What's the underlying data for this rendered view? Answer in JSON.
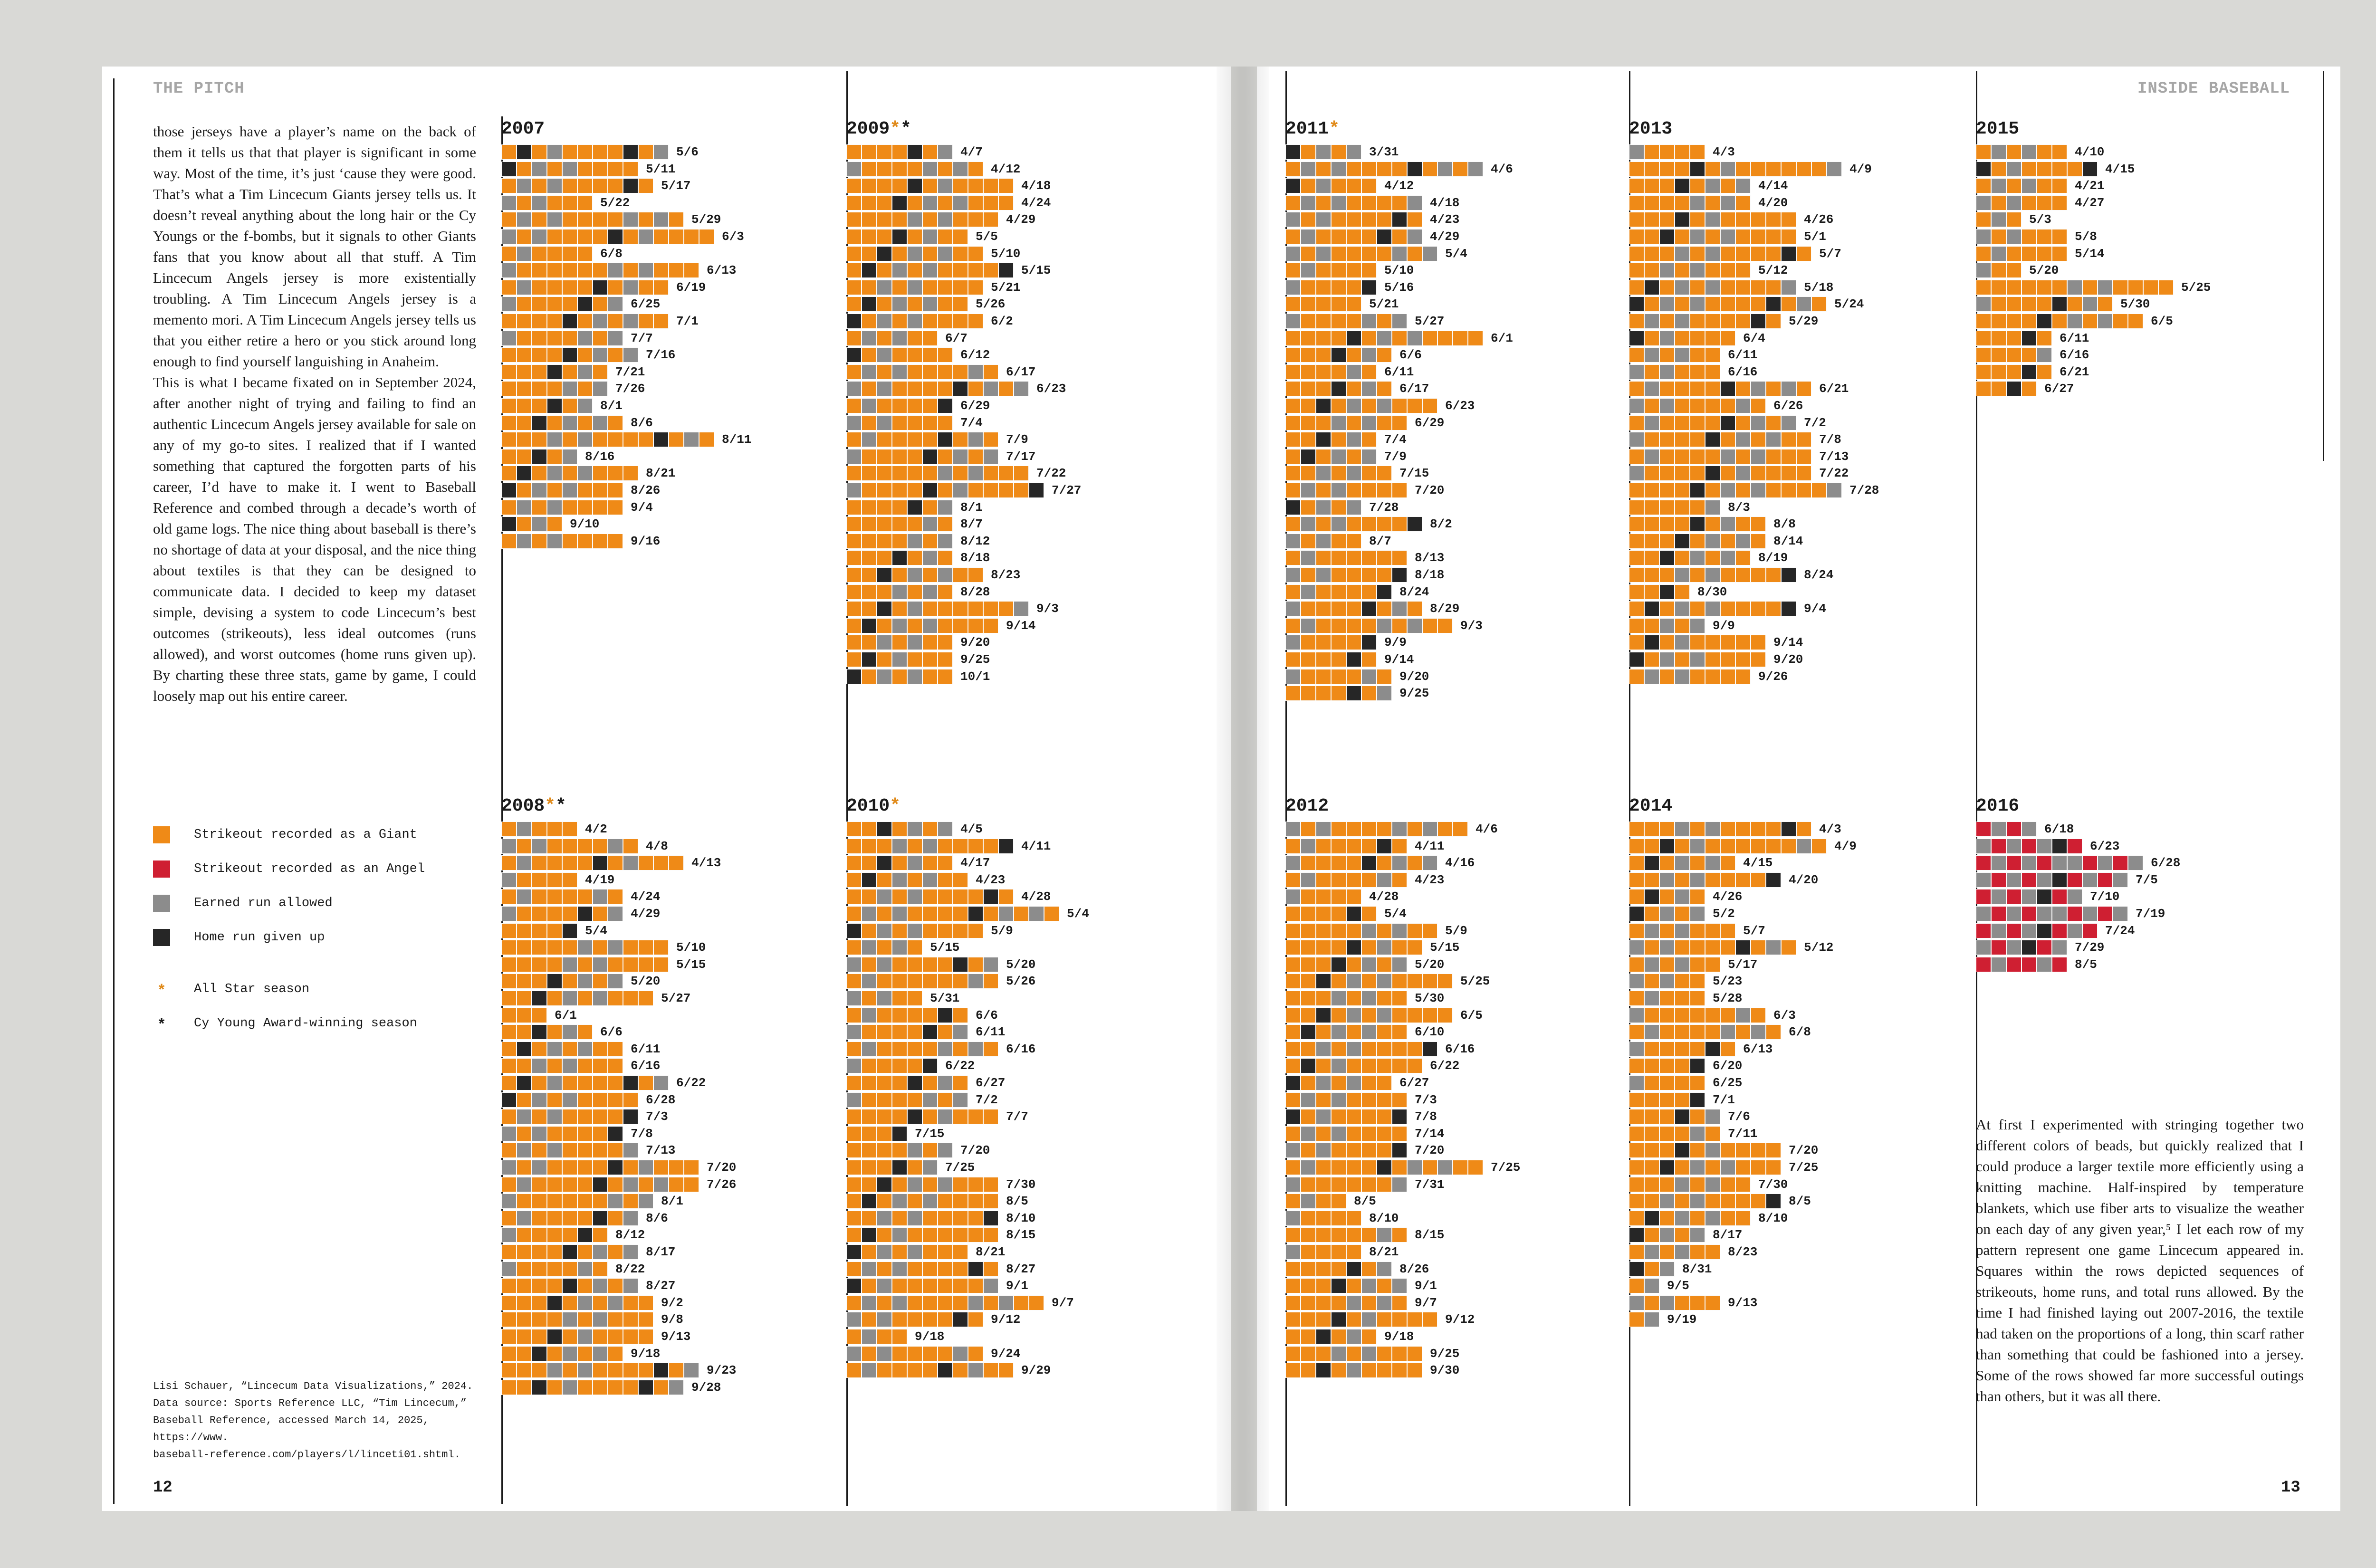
{
  "left_page": {
    "header": "THE PITCH",
    "page_number": "12",
    "body_text": "those jerseys have a player’s name on the back of them it tells us that that player is significant in some way. Most of the time, it’s just ‘cause they were good. That’s what a Tim Lincecum Giants jersey tells us. It doesn’t reveal anything about the long hair or the Cy Youngs or the f-bombs, but it signals to other Giants fans that you know about all that stuff. A Tim Lincecum Angels jersey is more existentially troubling. A Tim Lincecum Angels jersey is a memento mori. A Tim Lincecum Angels jersey tells us that you either retire a hero or you stick around long enough to find yourself languishing in Anaheim.\n      This is what I became fixated on in September 2024, after another night of trying and failing to find an authentic Lincecum Angels jersey available for sale on any of my go-to sites. I realized that if I wanted something that captured the forgotten parts of his career, I’d have to make it. I went to Baseball Reference and combed through a decade’s worth of old game logs. The nice thing about baseball is there’s no shortage of data at your disposal, and the nice thing about textiles is that they can be designed to communicate data. I decided to keep my dataset simple, devising a system to code Lincecum’s best outcomes (strikeouts), less ideal outcomes (runs allowed), and worst outcomes (home runs given up). By charting these three stats, game by game, I could loosely map out his entire career.",
    "legend": [
      {
        "type": "swatch",
        "color": "#ef8a17",
        "label": "Strikeout recorded as a Giant"
      },
      {
        "type": "swatch",
        "color": "#cf1f32",
        "label": "Strikeout recorded as an Angel"
      },
      {
        "type": "swatch",
        "color": "#8c8c8c",
        "label": "Earned run allowed"
      },
      {
        "type": "swatch",
        "color": "#262626",
        "label": "Home run given up"
      },
      {
        "type": "star",
        "symbol": "*",
        "color": "#e08a1a",
        "label": "All Star season"
      },
      {
        "type": "star",
        "symbol": "*",
        "color": "#1a1a1a",
        "label": "Cy Young Award-winning season"
      }
    ],
    "source_note": "Lisi Schauer, “Lincecum Data Visualizations,” 2024.\nData source: Sports Reference LLC, “Tim Lincecum,”\nBaseball Reference, accessed March 14, 2025, https://www.\nbaseball-reference.com/players/l/linceti01.shtml."
  },
  "right_page": {
    "header": "INSIDE BASEBALL",
    "page_number": "13",
    "body_text": "      At first I experimented with stringing together two different colors of beads, but quickly realized that I could produce a larger textile more efficiently using a knitting machine. Half-inspired by temperature blankets, which use fiber arts to visualize the weather on each day of any given year,⁵ I let each row of my pattern represent one game Lincecum appeared in. Squares within the rows depicted sequences of strikeouts, home runs, and total runs allowed. By the time I had finished laying out 2007-2016, the textile had taken on the proportions of a long, thin scarf rather than something that could be fashioned into a jersey. Some of the rows showed far more successful outings than others, but it was all there."
  },
  "seasons": [
    {
      "year": "2007",
      "all_star": false,
      "cy_young": false,
      "dates": [
        "5/6",
        "5/11",
        "5/17",
        "5/22",
        "5/29",
        "6/3",
        "6/8",
        "6/13",
        "6/19",
        "6/25",
        "7/1",
        "7/7",
        "7/16",
        "7/21",
        "7/26",
        "8/1",
        "8/6",
        "8/11",
        "8/16",
        "8/21",
        "8/26",
        "9/4",
        "9/10",
        "9/16"
      ],
      "lengths": [
        11,
        9,
        10,
        6,
        12,
        14,
        6,
        13,
        11,
        8,
        11,
        8,
        9,
        7,
        7,
        6,
        8,
        14,
        5,
        9,
        8,
        8,
        4,
        8
      ]
    },
    {
      "year": "2008",
      "all_star": true,
      "cy_young": true,
      "dates": [
        "4/2",
        "4/8",
        "4/13",
        "4/19",
        "4/24",
        "4/29",
        "5/4",
        "5/10",
        "5/15",
        "5/20",
        "5/27",
        "6/1",
        "6/6",
        "6/11",
        "6/16",
        "6/22",
        "6/28",
        "7/3",
        "7/8",
        "7/13",
        "7/20",
        "7/26",
        "8/1",
        "8/6",
        "8/12",
        "8/17",
        "8/22",
        "8/27",
        "9/2",
        "9/8",
        "9/13",
        "9/18",
        "9/23",
        "9/28"
      ],
      "lengths": [
        5,
        9,
        12,
        5,
        8,
        8,
        5,
        11,
        11,
        8,
        10,
        3,
        6,
        8,
        8,
        11,
        9,
        9,
        8,
        9,
        13,
        13,
        10,
        9,
        7,
        9,
        7,
        9,
        10,
        10,
        10,
        8,
        13,
        12
      ]
    },
    {
      "year": "2009",
      "all_star": true,
      "cy_young": true,
      "dates": [
        "4/7",
        "4/12",
        "4/18",
        "4/24",
        "4/29",
        "5/5",
        "5/10",
        "5/15",
        "5/21",
        "5/26",
        "6/2",
        "6/7",
        "6/12",
        "6/17",
        "6/23",
        "6/29",
        "7/4",
        "7/9",
        "7/17",
        "7/22",
        "7/27",
        "8/1",
        "8/7",
        "8/12",
        "8/18",
        "8/23",
        "8/28",
        "9/3",
        "9/14",
        "9/20",
        "9/25",
        "10/1"
      ],
      "lengths": [
        7,
        9,
        11,
        11,
        10,
        8,
        9,
        11,
        9,
        8,
        9,
        6,
        7,
        10,
        12,
        7,
        7,
        10,
        10,
        12,
        13,
        7,
        7,
        7,
        7,
        9,
        7,
        12,
        10,
        7,
        7,
        7
      ]
    },
    {
      "year": "2010",
      "all_star": true,
      "cy_young": false,
      "dates": [
        "4/5",
        "4/11",
        "4/17",
        "4/23",
        "4/28",
        "5/4",
        "5/9",
        "5/15",
        "5/20",
        "5/26",
        "5/31",
        "6/6",
        "6/11",
        "6/16",
        "6/22",
        "6/27",
        "7/2",
        "7/7",
        "7/15",
        "7/20",
        "7/25",
        "7/30",
        "8/5",
        "8/10",
        "8/15",
        "8/21",
        "8/27",
        "9/1",
        "9/7",
        "9/12",
        "9/18",
        "9/24",
        "9/29"
      ],
      "lengths": [
        7,
        11,
        7,
        8,
        11,
        14,
        9,
        5,
        10,
        10,
        5,
        8,
        8,
        10,
        6,
        8,
        8,
        10,
        4,
        7,
        6,
        10,
        10,
        10,
        10,
        8,
        10,
        10,
        13,
        9,
        4,
        9,
        11
      ]
    },
    {
      "year": "2011",
      "all_star": true,
      "cy_young": false,
      "dates": [
        "3/31",
        "4/6",
        "4/12",
        "4/18",
        "4/23",
        "4/29",
        "5/4",
        "5/10",
        "5/16",
        "5/21",
        "5/27",
        "6/1",
        "6/6",
        "6/11",
        "6/17",
        "6/23",
        "6/29",
        "7/4",
        "7/9",
        "7/15",
        "7/20",
        "7/28",
        "8/2",
        "8/7",
        "8/13",
        "8/18",
        "8/24",
        "8/29",
        "9/3",
        "9/9",
        "9/14",
        "9/20",
        "9/25"
      ],
      "lengths": [
        5,
        13,
        6,
        9,
        9,
        9,
        10,
        6,
        6,
        5,
        8,
        13,
        7,
        6,
        7,
        10,
        8,
        6,
        6,
        7,
        8,
        5,
        9,
        5,
        8,
        8,
        7,
        9,
        11,
        6,
        6,
        7,
        7
      ]
    },
    {
      "year": "2012",
      "all_star": false,
      "cy_young": false,
      "dates": [
        "4/6",
        "4/11",
        "4/16",
        "4/23",
        "4/28",
        "5/4",
        "5/9",
        "5/15",
        "5/20",
        "5/25",
        "5/30",
        "6/5",
        "6/10",
        "6/16",
        "6/22",
        "6/27",
        "7/3",
        "7/8",
        "7/14",
        "7/20",
        "7/25",
        "7/31",
        "8/5",
        "8/10",
        "8/15",
        "8/21",
        "8/26",
        "9/1",
        "9/7",
        "9/12",
        "9/18",
        "9/25",
        "9/30"
      ],
      "lengths": [
        12,
        8,
        10,
        8,
        5,
        6,
        10,
        9,
        8,
        11,
        8,
        11,
        8,
        10,
        9,
        7,
        8,
        8,
        8,
        8,
        13,
        8,
        4,
        5,
        8,
        5,
        7,
        8,
        8,
        10,
        6,
        9,
        9
      ]
    },
    {
      "year": "2013",
      "all_star": false,
      "cy_young": false,
      "dates": [
        "4/3",
        "4/9",
        "4/14",
        "4/20",
        "4/26",
        "5/1",
        "5/7",
        "5/12",
        "5/18",
        "5/24",
        "5/29",
        "6/4",
        "6/11",
        "6/16",
        "6/21",
        "6/26",
        "7/2",
        "7/8",
        "7/13",
        "7/22",
        "7/28",
        "8/3",
        "8/8",
        "8/14",
        "8/19",
        "8/24",
        "8/30",
        "9/4",
        "9/9",
        "9/14",
        "9/20",
        "9/26"
      ],
      "lengths": [
        5,
        14,
        8,
        8,
        11,
        11,
        12,
        8,
        11,
        13,
        10,
        7,
        6,
        6,
        12,
        9,
        11,
        12,
        12,
        12,
        14,
        6,
        9,
        9,
        8,
        11,
        4,
        11,
        5,
        9,
        9,
        8
      ]
    },
    {
      "year": "2014",
      "all_star": false,
      "cy_young": false,
      "dates": [
        "4/3",
        "4/9",
        "4/15",
        "4/20",
        "4/26",
        "5/2",
        "5/7",
        "5/12",
        "5/17",
        "5/23",
        "5/28",
        "6/3",
        "6/8",
        "6/13",
        "6/20",
        "6/25",
        "7/1",
        "7/6",
        "7/11",
        "7/20",
        "7/25",
        "7/30",
        "8/5",
        "8/10",
        "8/17",
        "8/23",
        "8/31",
        "9/5",
        "9/13",
        "9/19"
      ],
      "lengths": [
        12,
        13,
        7,
        10,
        5,
        5,
        7,
        11,
        6,
        5,
        5,
        9,
        10,
        7,
        5,
        5,
        5,
        6,
        6,
        10,
        10,
        8,
        10,
        8,
        5,
        6,
        3,
        2,
        6,
        2
      ]
    },
    {
      "year": "2015",
      "all_star": false,
      "cy_young": false,
      "dates": [
        "4/10",
        "4/15",
        "4/21",
        "4/27",
        "5/3",
        "5/8",
        "5/14",
        "5/20",
        "5/25",
        "5/30",
        "6/5",
        "6/11",
        "6/16",
        "6/21",
        "6/27"
      ],
      "lengths": [
        6,
        8,
        6,
        6,
        3,
        6,
        6,
        3,
        13,
        9,
        11,
        5,
        5,
        5,
        4
      ]
    },
    {
      "year": "2016",
      "all_star": false,
      "cy_young": false,
      "dates": [
        "6/18",
        "6/23",
        "6/28",
        "7/5",
        "7/10",
        "7/19",
        "7/24",
        "7/29",
        "8/5"
      ],
      "lengths": [
        4,
        7,
        11,
        10,
        7,
        10,
        8,
        6,
        6
      ]
    }
  ],
  "strikeout_color_giant": "#ef8a17",
  "strikeout_color_angel": "#cf1f32",
  "earned_run_color": "#8c8c8c",
  "home_run_color": "#262626"
}
